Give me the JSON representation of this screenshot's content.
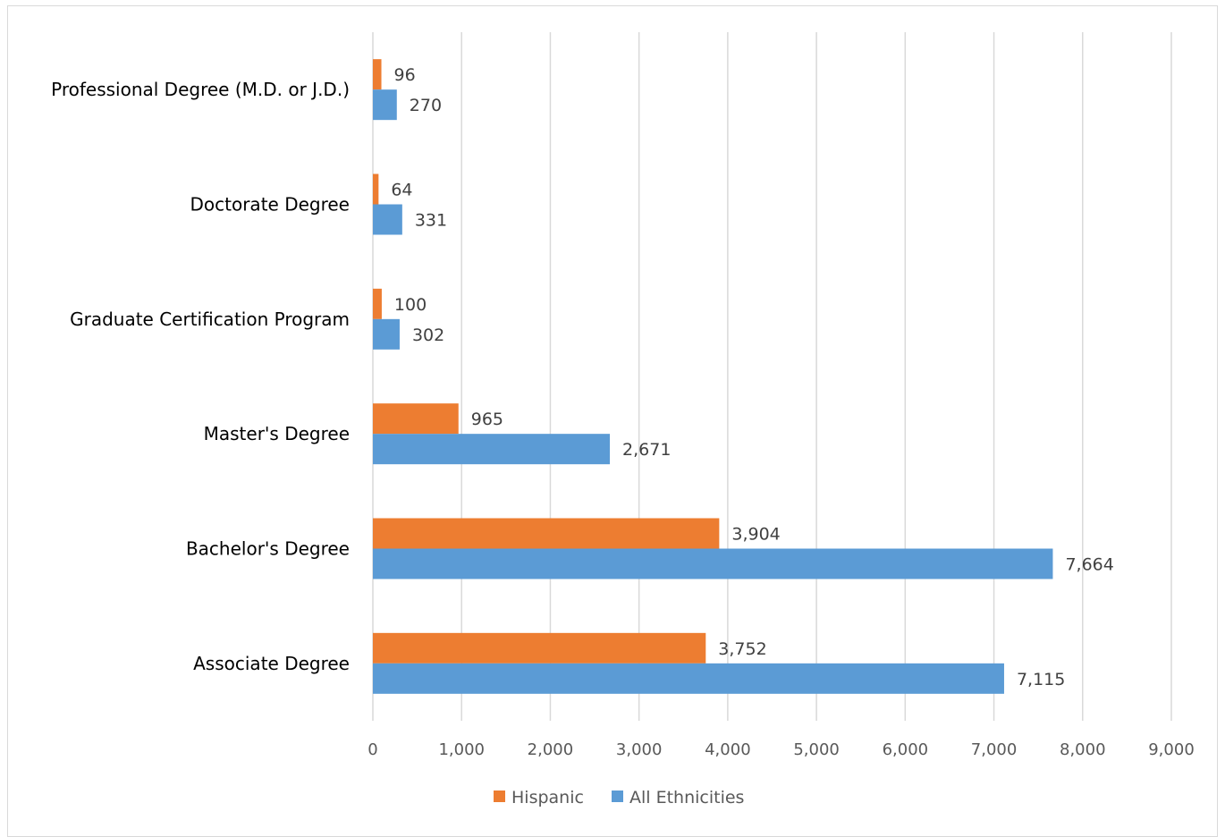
{
  "chart_data": {
    "type": "bar",
    "orientation": "horizontal",
    "categories": [
      "Associate Degree",
      "Bachelor's Degree",
      "Master's Degree",
      "Graduate Certification Program",
      "Doctorate Degree",
      "Professional Degree (M.D. or J.D.)"
    ],
    "series": [
      {
        "name": "Hispanic",
        "color": "#ED7D31",
        "values": [
          3752,
          3904,
          965,
          100,
          64,
          96
        ],
        "labels": [
          "3,752",
          "3,904",
          "965",
          "100",
          "64",
          "96"
        ]
      },
      {
        "name": "All Ethnicities",
        "color": "#5B9BD5",
        "values": [
          7115,
          7664,
          2671,
          302,
          331,
          270
        ],
        "labels": [
          "7,115",
          "7,664",
          "2,671",
          "302",
          "331",
          "270"
        ]
      }
    ],
    "xlim": [
      0,
      9000
    ],
    "ticks": [
      0,
      1000,
      2000,
      3000,
      4000,
      5000,
      6000,
      7000,
      8000,
      9000
    ],
    "tick_labels": [
      "0",
      "1,000",
      "2,000",
      "3,000",
      "4,000",
      "5,000",
      "6,000",
      "7,000",
      "8,000",
      "9,000"
    ],
    "grid": "vertical",
    "legend_position": "bottom",
    "title": "",
    "xlabel": "",
    "ylabel": ""
  }
}
